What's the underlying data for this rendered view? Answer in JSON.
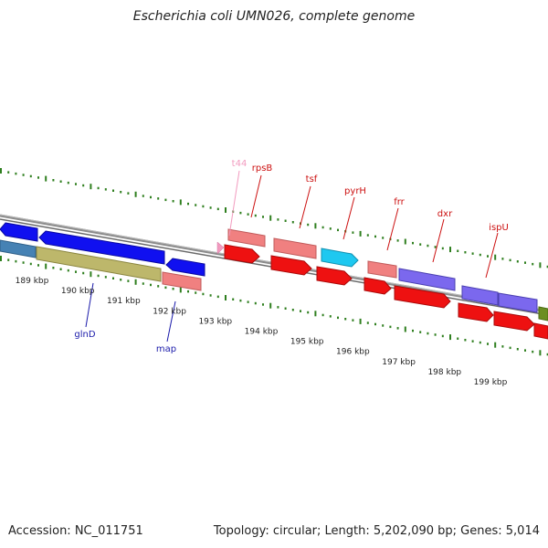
{
  "title": "Escherichia coli UMN026, complete genome",
  "footer": {
    "accession": "Accession: NC_011751",
    "summary": "Topology: circular; Length: 5,202,090 bp; Genes: 5,014"
  },
  "colors": {
    "backbone": "#8c8c8c",
    "tick_green": "#2f7f1f",
    "label_red": "#cc1111",
    "label_blue": "#1a1aaa",
    "label_pink": "#f29bbf"
  },
  "scale": {
    "ticks": [
      {
        "label": "189 kbp",
        "kbp": 189
      },
      {
        "label": "190 kbp",
        "kbp": 190
      },
      {
        "label": "191 kbp",
        "kbp": 191
      },
      {
        "label": "192 kbp",
        "kbp": 192
      },
      {
        "label": "193 kbp",
        "kbp": 193
      },
      {
        "label": "194 kbp",
        "kbp": 194
      },
      {
        "label": "195 kbp",
        "kbp": 195
      },
      {
        "label": "196 kbp",
        "kbp": 196
      },
      {
        "label": "197 kbp",
        "kbp": 197
      },
      {
        "label": "198 kbp",
        "kbp": 198
      },
      {
        "label": "199 kbp",
        "kbp": 199
      }
    ]
  },
  "features": [
    {
      "name": "rpsB",
      "color": "#f08080",
      "dark": "#c05a5a",
      "strand": "forward",
      "track": "outer",
      "label_color": "#cc1111"
    },
    {
      "name": "tsf",
      "color": "#f08080",
      "dark": "#c05a5a",
      "strand": "forward",
      "track": "outer",
      "label_color": "#cc1111"
    },
    {
      "name": "pyrH",
      "color": "#1ec8f0",
      "dark": "#1190b0",
      "strand": "forward",
      "track": "outer",
      "label_color": "#cc1111"
    },
    {
      "name": "frr",
      "color": "#f08080",
      "dark": "#c05a5a",
      "strand": "forward",
      "track": "outer",
      "label_color": "#cc1111"
    },
    {
      "name": "dxr",
      "color": "#7b68ee",
      "dark": "#4a3fb0",
      "strand": "forward",
      "track": "outer",
      "label_color": "#cc1111"
    },
    {
      "name": "ispU",
      "color": "#7b68ee",
      "dark": "#4a3fb0",
      "strand": "forward",
      "track": "outer",
      "label_color": "#cc1111"
    },
    {
      "name": "glnD",
      "color": "#1010f0",
      "dark": "#0a0aa0",
      "strand": "reverse",
      "track": "outer",
      "label_color": "#1a1aaa"
    },
    {
      "name": "map",
      "color": "#1010f0",
      "dark": "#0a0aa0",
      "strand": "reverse",
      "track": "outer",
      "label_color": "#1a1aaa"
    },
    {
      "name": "t44",
      "color": "#f29bbf",
      "dark": "#d070a0",
      "strand": "forward",
      "track": "outer",
      "label_color": "#f29bbf"
    }
  ]
}
